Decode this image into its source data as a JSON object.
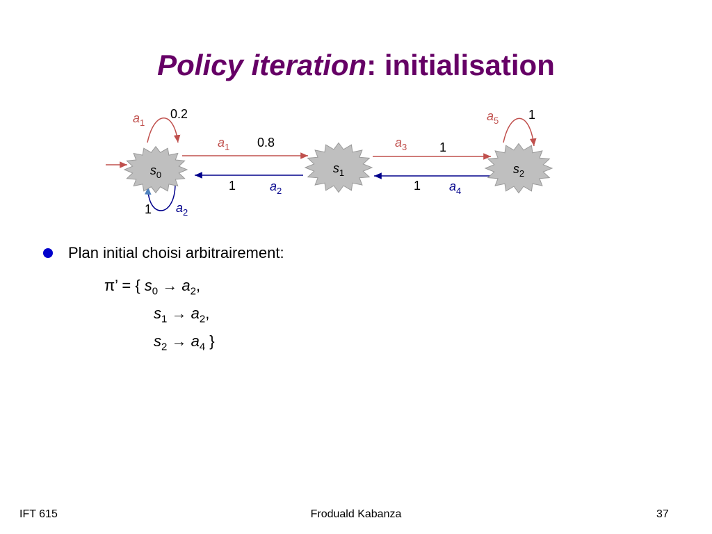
{
  "title": {
    "italic": "Policy iteration",
    "rest": ": initialisation"
  },
  "diagram": {
    "states": [
      {
        "letter": "s",
        "sub": "0"
      },
      {
        "letter": "s",
        "sub": "1"
      },
      {
        "letter": "s",
        "sub": "2"
      }
    ],
    "edges": [
      {
        "action": "a",
        "action_sub": "1",
        "prob": "0.2",
        "from": "s0",
        "to": "s0",
        "color": "#c0504d"
      },
      {
        "action": "a",
        "action_sub": "1",
        "prob": "0.8",
        "from": "s0",
        "to": "s1",
        "color": "#c0504d"
      },
      {
        "action": "a",
        "action_sub": "2",
        "prob": "1",
        "from": "s1",
        "to": "s0",
        "color": "#00008b"
      },
      {
        "action": "a",
        "action_sub": "2",
        "prob": "1",
        "from": "s0",
        "to": "s0",
        "color": "#00008b"
      },
      {
        "action": "a",
        "action_sub": "3",
        "prob": "1",
        "from": "s1",
        "to": "s2",
        "color": "#c0504d"
      },
      {
        "action": "a",
        "action_sub": "4",
        "prob": "1",
        "from": "s2",
        "to": "s1",
        "color": "#00008b"
      },
      {
        "action": "a",
        "action_sub": "5",
        "prob": "1",
        "from": "s2",
        "to": "s2",
        "color": "#c0504d"
      }
    ],
    "colors": {
      "node_fill": "#bfbfbf",
      "red_action": "#c0504d",
      "blue_action": "#00008b"
    }
  },
  "bullet": {
    "text": "Plan initial choisi arbitrairement:"
  },
  "policy": {
    "lead": "π’ = {",
    "rows": [
      {
        "state": "s",
        "state_sub": "0",
        "arrow": "→",
        "action": "a",
        "action_sub": "2",
        "end": ","
      },
      {
        "state": "s",
        "state_sub": "1",
        "arrow": "→",
        "action": "a",
        "action_sub": "2",
        "end": ","
      },
      {
        "state": "s",
        "state_sub": "2",
        "arrow": "→",
        "action": "a",
        "action_sub": "4",
        "end": " }"
      }
    ]
  },
  "footer": {
    "left": "IFT 615",
    "center": "Froduald Kabanza",
    "right": "37"
  }
}
